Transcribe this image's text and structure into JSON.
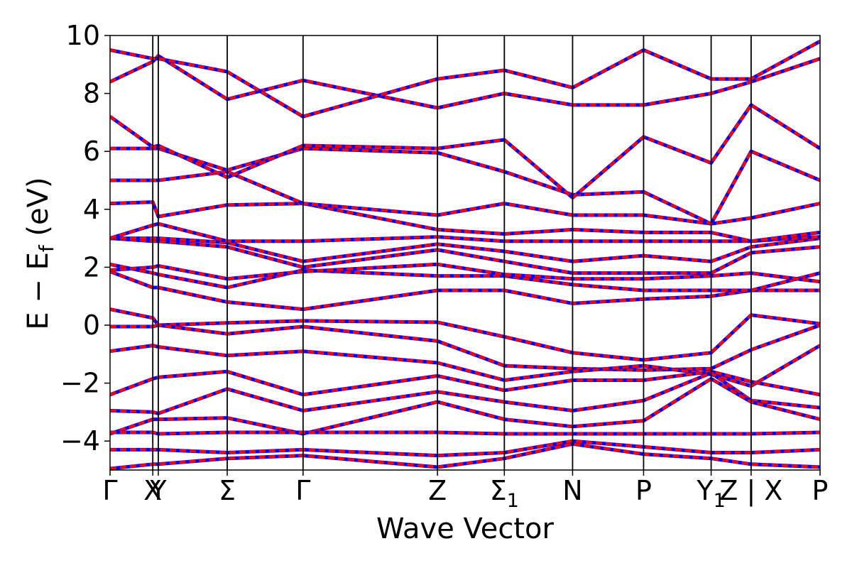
{
  "chart_data": {
    "type": "line",
    "title": "",
    "xlabel": "Wave Vector",
    "ylabel": {
      "base": "E − E",
      "sub": "f",
      "unit": " (eV)"
    },
    "ylim": [
      -5,
      10
    ],
    "yticks": [
      -4,
      -2,
      0,
      2,
      4,
      6,
      8,
      10
    ],
    "ytick_labels": [
      "−4",
      "−2",
      "0",
      "2",
      "4",
      "6",
      "8",
      "10"
    ],
    "xlim": [
      0,
      10.3
    ],
    "kpoints": [
      {
        "x": 0.0,
        "label": "Γ",
        "sub": ""
      },
      {
        "x": 0.62,
        "label": "X",
        "sub": ""
      },
      {
        "x": 0.7,
        "label": "Y",
        "sub": ""
      },
      {
        "x": 1.7,
        "label": "Σ",
        "sub": ""
      },
      {
        "x": 2.8,
        "label": "Γ",
        "sub": ""
      },
      {
        "x": 4.75,
        "label": "Z",
        "sub": ""
      },
      {
        "x": 5.72,
        "label": "Σ",
        "sub": "1"
      },
      {
        "x": 6.71,
        "label": "N",
        "sub": ""
      },
      {
        "x": 7.74,
        "label": "P",
        "sub": ""
      },
      {
        "x": 8.72,
        "label": "Y",
        "sub": "1"
      },
      {
        "x": 9.3,
        "label": "Z | X",
        "sub": ""
      },
      {
        "x": 10.3,
        "label": "P",
        "sub": ""
      }
    ],
    "grid": false,
    "legend": "none",
    "colors": {
      "overlay": "#ff0000",
      "underlay": "#0000ff",
      "vline": "#000000"
    },
    "series": [
      {
        "values": [
          -0.05,
          -0.05,
          0.0,
          0.08,
          0.15,
          0.1,
          -0.4,
          -0.95,
          -1.2,
          -0.95,
          0.35,
          0.05,
          -0.7
        ]
      },
      {
        "values": [
          0.55,
          0.25,
          0.0,
          -0.3,
          -0.05,
          -0.55,
          -1.4,
          -1.5,
          -1.55,
          -1.5,
          -0.85,
          0.0,
          -1.2
        ]
      },
      {
        "values": [
          -0.9,
          -0.7,
          -0.75,
          -1.05,
          -0.9,
          -1.3,
          -1.9,
          -1.6,
          -1.4,
          -1.7,
          -2.1,
          -0.7,
          -1.3
        ]
      },
      {
        "values": [
          -2.4,
          -1.85,
          -1.8,
          -1.6,
          -2.4,
          -1.75,
          -2.25,
          -1.9,
          -1.9,
          -1.6,
          -1.95,
          -2.4,
          -2.5
        ]
      },
      {
        "values": [
          -2.95,
          -3.0,
          -3.05,
          -2.2,
          -2.95,
          -2.3,
          -2.65,
          -2.95,
          -2.6,
          -1.65,
          -2.6,
          -2.85,
          -2.3
        ]
      },
      {
        "values": [
          -3.75,
          -3.25,
          -3.25,
          -3.2,
          -3.75,
          -2.65,
          -3.25,
          -3.5,
          -3.3,
          -1.85,
          -2.65,
          -3.25,
          -3.0
        ]
      },
      {
        "values": [
          -3.7,
          -3.7,
          -3.75,
          -3.7,
          -3.7,
          -3.7,
          -3.75,
          -3.75,
          -3.75,
          -3.75,
          -3.75,
          -3.7,
          -3.6
        ]
      },
      {
        "values": [
          -4.3,
          -4.3,
          -4.3,
          -4.4,
          -4.3,
          -4.5,
          -4.4,
          -4.0,
          -4.2,
          -4.4,
          -4.4,
          -4.3,
          -4.0
        ]
      },
      {
        "values": [
          -4.95,
          -4.8,
          -4.8,
          -4.6,
          -4.5,
          -4.9,
          -4.6,
          -4.1,
          -4.45,
          -4.6,
          -4.8,
          -4.9,
          -4.5
        ]
      },
      {
        "values": [
          1.85,
          1.3,
          1.3,
          0.8,
          0.55,
          1.2,
          1.2,
          0.75,
          0.9,
          1.0,
          1.2,
          1.2,
          0.6
        ]
      },
      {
        "values": [
          2.1,
          1.8,
          1.75,
          1.3,
          1.9,
          1.7,
          1.7,
          1.4,
          1.2,
          1.2,
          1.2,
          1.8,
          1.3
        ]
      },
      {
        "values": [
          1.9,
          2.0,
          2.05,
          1.6,
          1.85,
          2.1,
          1.75,
          1.6,
          1.6,
          1.7,
          1.8,
          1.5,
          1.5
        ]
      },
      {
        "values": [
          3.0,
          2.9,
          2.9,
          2.7,
          2.0,
          2.6,
          2.2,
          1.8,
          1.8,
          1.8,
          2.5,
          2.7,
          2.3
        ]
      },
      {
        "values": [
          3.0,
          3.0,
          3.0,
          2.85,
          2.2,
          2.8,
          2.55,
          2.2,
          2.4,
          2.2,
          2.7,
          3.0,
          2.8
        ]
      },
      {
        "values": [
          3.0,
          3.45,
          3.5,
          2.9,
          2.9,
          3.05,
          2.9,
          2.9,
          2.9,
          2.9,
          2.9,
          3.05,
          3.3
        ]
      },
      {
        "values": [
          4.2,
          4.25,
          3.75,
          4.15,
          4.2,
          3.3,
          3.15,
          3.3,
          3.2,
          3.2,
          2.9,
          3.2,
          3.6
        ]
      },
      {
        "values": [
          5.0,
          5.0,
          5.0,
          5.3,
          4.2,
          3.8,
          4.2,
          3.8,
          3.8,
          3.5,
          3.7,
          4.2,
          4.5
        ]
      },
      {
        "values": [
          6.1,
          6.1,
          6.1,
          5.35,
          6.1,
          5.95,
          5.3,
          4.5,
          4.6,
          3.5,
          6.0,
          5.0,
          4.6
        ]
      },
      {
        "values": [
          7.2,
          6.15,
          6.2,
          5.1,
          6.2,
          6.1,
          6.4,
          4.4,
          6.5,
          5.6,
          7.6,
          6.1,
          5.8
        ]
      },
      {
        "values": [
          8.4,
          9.1,
          9.3,
          7.8,
          8.45,
          7.5,
          8.0,
          7.6,
          7.6,
          8.0,
          8.4,
          9.2,
          6.4
        ]
      },
      {
        "values": [
          9.5,
          9.2,
          9.2,
          8.75,
          7.2,
          8.5,
          8.8,
          8.2,
          9.5,
          8.5,
          8.5,
          9.8,
          7.6
        ]
      }
    ]
  }
}
